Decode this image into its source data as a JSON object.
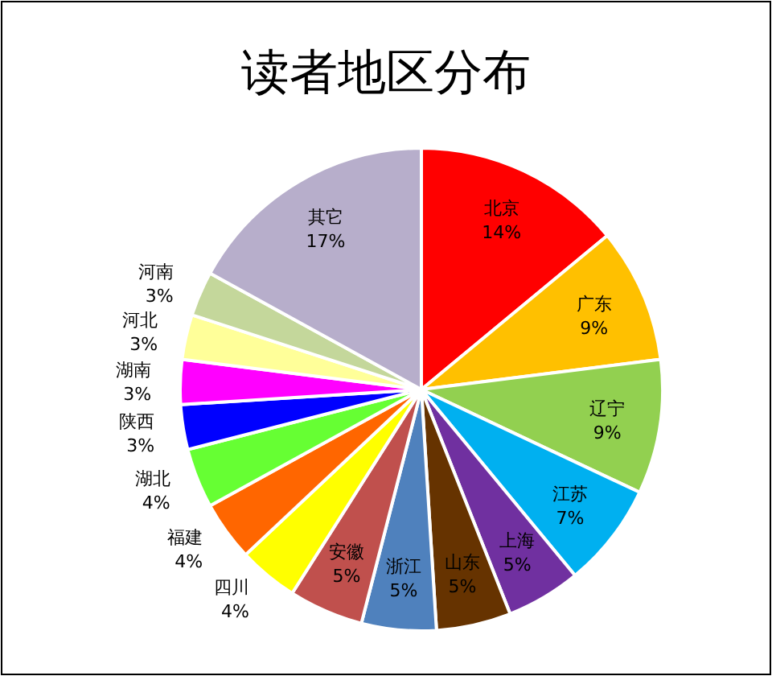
{
  "chart_data": {
    "type": "pie",
    "title": "读者地区分布",
    "categories": [
      "北京",
      "广东",
      "辽宁",
      "江苏",
      "上海",
      "山东",
      "浙江",
      "安徽",
      "四川",
      "福建",
      "湖北",
      "陕西",
      "湖南",
      "河北",
      "河南",
      "其它"
    ],
    "values": [
      14,
      9,
      9,
      7,
      5,
      5,
      5,
      5,
      4,
      4,
      4,
      3,
      3,
      3,
      3,
      17
    ],
    "value_labels": [
      "14%",
      "9%",
      "9%",
      "7%",
      "5%",
      "5%",
      "5%",
      "5%",
      "4%",
      "4%",
      "4%",
      "3%",
      "3%",
      "3%",
      "3%",
      "17%"
    ],
    "colors": [
      "#ff0000",
      "#ffc000",
      "#92d050",
      "#00b0f0",
      "#7030a0",
      "#663300",
      "#4f81bd",
      "#c0504d",
      "#ffff00",
      "#ff6600",
      "#66ff33",
      "#0000ff",
      "#ff00ff",
      "#ffff99",
      "#c4d79b",
      "#b7aecb"
    ]
  }
}
